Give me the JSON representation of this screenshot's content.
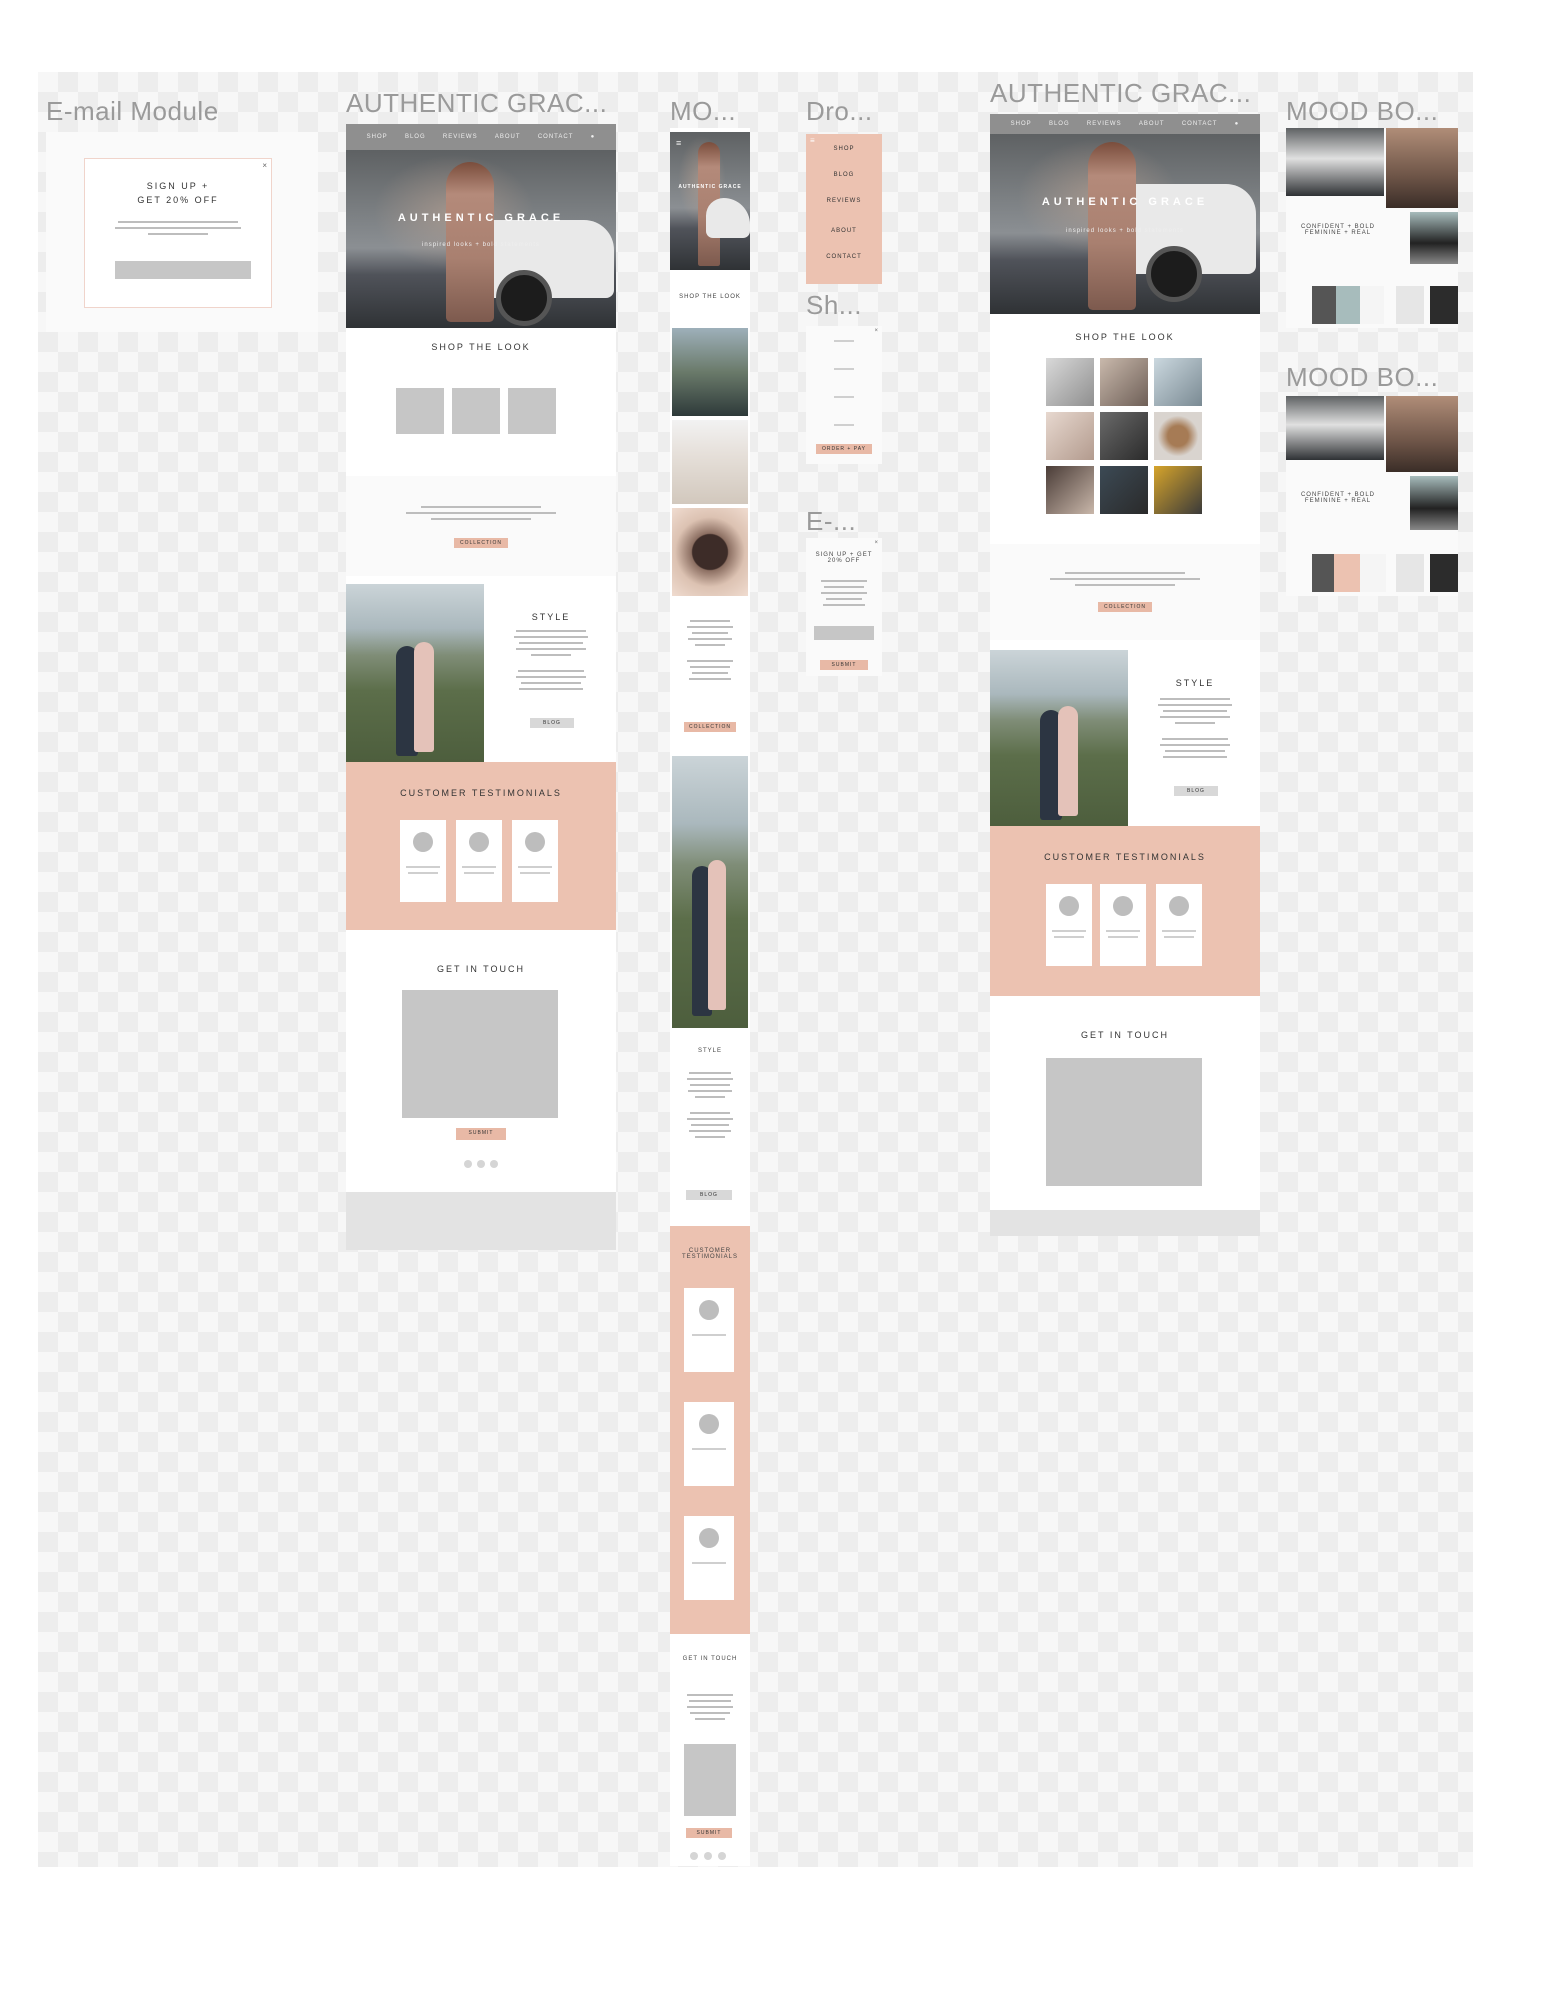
{
  "frames": {
    "email_module": {
      "title": "E-mail Module",
      "heading_line1": "SIGN UP +",
      "heading_line2": "GET 20% OFF"
    },
    "desktop_1": {
      "title": "AUTHENTIC GRAC...",
      "nav": [
        "SHOP",
        "BLOG",
        "REVIEWS",
        "ABOUT",
        "CONTACT"
      ],
      "hero_title": "AUTHENTIC GRACE",
      "hero_sub": "inspired looks + bold statements",
      "shop_title": "SHOP THE LOOK",
      "collection_btn": "COLLECTION",
      "style_title": "STYLE",
      "blog_btn": "BLOG",
      "testimonials_title": "CUSTOMER TESTIMONIALS",
      "touch_title": "GET IN TOUCH",
      "submit_btn": "SUBMIT"
    },
    "mobile": {
      "title": "MO...",
      "hero_title": "AUTHENTIC GRACE",
      "shop_title": "SHOP THE LOOK",
      "collection_btn": "COLLECTION",
      "style_title": "STYLE",
      "blog_btn": "BLOG",
      "testimonials_title": "CUSTOMER TESTIMONIALS",
      "touch_title": "GET IN TOUCH",
      "submit_btn": "SUBMIT"
    },
    "dropdown": {
      "title": "Dro...",
      "items": [
        "SHOP",
        "BLOG",
        "REVIEWS",
        "ABOUT",
        "CONTACT"
      ]
    },
    "shop_small": {
      "title": "Sh...",
      "btn": "ORDER + PAY"
    },
    "email_small": {
      "title": "E-...",
      "heading": "SIGN UP + GET 20% OFF",
      "btn": "SUBMIT"
    },
    "desktop_2": {
      "title": "AUTHENTIC GRAC...",
      "nav": [
        "SHOP",
        "BLOG",
        "REVIEWS",
        "ABOUT",
        "CONTACT"
      ],
      "hero_title": "AUTHENTIC GRACE",
      "hero_sub": "inspired looks + bold statements",
      "shop_title": "SHOP THE LOOK",
      "collection_btn": "COLLECTION",
      "style_title": "STYLE",
      "blog_btn": "BLOG",
      "testimonials_title": "CUSTOMER TESTIMONIALS",
      "touch_title": "GET IN TOUCH"
    },
    "mood_board_1": {
      "title": "MOOD BO...",
      "caption": "CONFIDENT + BOLD FEMININE + REAL"
    },
    "mood_board_2": {
      "title": "MOOD BO...",
      "caption": "CONFIDENT + BOLD FEMININE + REAL"
    }
  },
  "colors": {
    "peach": "#ecc2b1",
    "gray_block": "#c6c6c6",
    "nav_gray": "#8f8f8f"
  },
  "palette_1": [
    "#555555",
    "#a7bcbc",
    "#f5f5f5",
    "#e6e6e6",
    "#2c2c2c"
  ],
  "palette_2": [
    "#555555",
    "#ecc2b1",
    "#f5f5f5",
    "#e6e6e6",
    "#2c2c2c"
  ]
}
